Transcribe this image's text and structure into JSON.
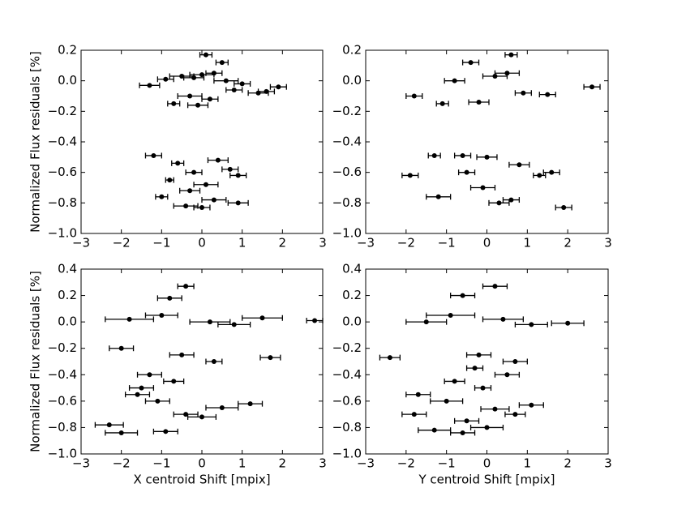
{
  "chart_data": [
    {
      "type": "scatter",
      "ylabel": "Normalized Flux residuals [%]",
      "color": "#000000",
      "xlim": [
        -3,
        3
      ],
      "ylim": [
        -1.0,
        0.2
      ],
      "xticks": [
        {
          "value": -3,
          "label": "−3"
        },
        {
          "value": -2,
          "label": "−2"
        },
        {
          "value": -1,
          "label": "−1"
        },
        0,
        1,
        2,
        3
      ],
      "yticks": [
        {
          "value": -1.0,
          "label": "−1.0"
        },
        {
          "value": -0.8,
          "label": "−0.8"
        },
        {
          "value": -0.6,
          "label": "−0.6"
        },
        {
          "value": -0.4,
          "label": "−0.4"
        },
        {
          "value": -0.2,
          "label": "−0.2"
        },
        {
          "value": 0.0,
          "label": "0.0"
        },
        {
          "value": 0.2,
          "label": "0.2"
        }
      ],
      "x": [
        0.1,
        -1.3,
        -0.9,
        -0.5,
        -0.2,
        0.3,
        0.6,
        1.0,
        1.4,
        1.9,
        -0.7,
        0.2,
        -0.1,
        0.8,
        1.6,
        0.5,
        -0.3,
        0.0,
        -1.2,
        -0.6,
        -0.2,
        0.4,
        0.9,
        -0.8,
        0.1,
        -0.3,
        0.7,
        -1.0,
        0.3,
        0.9,
        -0.4,
        0.0
      ],
      "y": [
        0.17,
        -0.03,
        0.01,
        0.03,
        0.02,
        0.05,
        0.0,
        -0.02,
        -0.08,
        -0.04,
        -0.15,
        -0.12,
        -0.16,
        -0.06,
        -0.07,
        0.12,
        -0.1,
        0.04,
        -0.49,
        -0.54,
        -0.6,
        -0.52,
        -0.62,
        -0.65,
        -0.68,
        -0.72,
        -0.58,
        -0.76,
        -0.78,
        -0.8,
        -0.82,
        -0.83
      ],
      "xerr": [
        0.15,
        0.25,
        0.2,
        0.3,
        0.25,
        0.2,
        0.3,
        0.2,
        0.25,
        0.2,
        0.15,
        0.2,
        0.25,
        0.2,
        0.2,
        0.15,
        0.3,
        0.3,
        0.2,
        0.15,
        0.2,
        0.25,
        0.2,
        0.1,
        0.3,
        0.25,
        0.2,
        0.15,
        0.3,
        0.25,
        0.3,
        0.2
      ]
    },
    {
      "type": "scatter",
      "color": "#000000",
      "xlim": [
        -3,
        3
      ],
      "ylim": [
        -1.0,
        0.2
      ],
      "xticks": [
        {
          "value": -3,
          "label": "−3"
        },
        {
          "value": -2,
          "label": "−2"
        },
        {
          "value": -1,
          "label": "−1"
        },
        0,
        1,
        2,
        3
      ],
      "yticks": [
        {
          "value": -1.0,
          "label": "−1.0"
        },
        {
          "value": -0.8,
          "label": "−0.8"
        },
        {
          "value": -0.6,
          "label": "−0.6"
        },
        {
          "value": -0.4,
          "label": "−0.4"
        },
        {
          "value": -0.2,
          "label": "−0.2"
        },
        {
          "value": 0.0,
          "label": "0.0"
        },
        {
          "value": 0.2,
          "label": "0.2"
        }
      ],
      "x": [
        0.6,
        -0.4,
        -1.8,
        2.6,
        -1.1,
        0.2,
        -0.8,
        0.9,
        1.5,
        -0.2,
        0.5,
        -0.6,
        0.0,
        -1.3,
        -1.9,
        -0.5,
        0.8,
        1.6,
        1.3,
        -1.2,
        0.3,
        1.9,
        -0.1,
        0.6
      ],
      "y": [
        0.17,
        0.12,
        -0.1,
        -0.04,
        -0.15,
        0.03,
        0.0,
        -0.08,
        -0.09,
        -0.14,
        0.05,
        -0.49,
        -0.5,
        -0.49,
        -0.62,
        -0.6,
        -0.55,
        -0.6,
        -0.62,
        -0.76,
        -0.8,
        -0.83,
        -0.7,
        -0.78
      ],
      "xerr": [
        0.15,
        0.2,
        0.2,
        0.2,
        0.15,
        0.3,
        0.25,
        0.2,
        0.2,
        0.25,
        0.3,
        0.2,
        0.25,
        0.15,
        0.2,
        0.2,
        0.25,
        0.2,
        0.15,
        0.3,
        0.25,
        0.2,
        0.3,
        0.2
      ]
    },
    {
      "type": "scatter",
      "ylabel": "Normalized Flux residuals [%]",
      "xlabel": "X centroid Shift [mpix]",
      "color": "#000000",
      "xlim": [
        -3,
        3
      ],
      "ylim": [
        -1.0,
        0.4
      ],
      "xticks": [
        {
          "value": -3,
          "label": "−3"
        },
        {
          "value": -2,
          "label": "−2"
        },
        {
          "value": -1,
          "label": "−1"
        },
        0,
        1,
        2,
        3
      ],
      "yticks": [
        {
          "value": -1.0,
          "label": "−1.0"
        },
        {
          "value": -0.8,
          "label": "−0.8"
        },
        {
          "value": -0.6,
          "label": "−0.6"
        },
        {
          "value": -0.4,
          "label": "−0.4"
        },
        {
          "value": -0.2,
          "label": "−0.2"
        },
        {
          "value": 0.0,
          "label": "0.0"
        },
        {
          "value": 0.2,
          "label": "0.2"
        },
        {
          "value": 0.4,
          "label": "0.4"
        }
      ],
      "x": [
        -0.4,
        -0.8,
        2.8,
        1.7,
        -2.0,
        -1.8,
        -1.0,
        0.2,
        0.8,
        1.5,
        -0.5,
        0.3,
        -1.3,
        -0.7,
        -1.5,
        -2.3,
        -1.1,
        -0.4,
        0.5,
        1.2,
        -0.9,
        -2.0,
        0.0,
        -1.6
      ],
      "y": [
        0.27,
        0.18,
        0.01,
        -0.27,
        -0.2,
        0.02,
        0.05,
        0.0,
        -0.02,
        0.03,
        -0.25,
        -0.3,
        -0.4,
        -0.45,
        -0.5,
        -0.78,
        -0.6,
        -0.7,
        -0.65,
        -0.62,
        -0.83,
        -0.84,
        -0.72,
        -0.55
      ],
      "xerr": [
        0.2,
        0.3,
        0.2,
        0.25,
        0.3,
        0.6,
        0.4,
        0.5,
        0.4,
        0.5,
        0.3,
        0.2,
        0.3,
        0.25,
        0.3,
        0.35,
        0.3,
        0.3,
        0.4,
        0.3,
        0.3,
        0.4,
        0.35,
        0.3
      ]
    },
    {
      "type": "scatter",
      "xlabel": "Y centroid Shift [mpix]",
      "color": "#000000",
      "xlim": [
        -3,
        3
      ],
      "ylim": [
        -1.0,
        0.4
      ],
      "xticks": [
        {
          "value": -3,
          "label": "−3"
        },
        {
          "value": -2,
          "label": "−2"
        },
        {
          "value": -1,
          "label": "−1"
        },
        0,
        1,
        2,
        3
      ],
      "yticks": [
        {
          "value": -1.0,
          "label": "−1.0"
        },
        {
          "value": -0.8,
          "label": "−0.8"
        },
        {
          "value": -0.6,
          "label": "−0.6"
        },
        {
          "value": -0.4,
          "label": "−0.4"
        },
        {
          "value": -0.2,
          "label": "−0.2"
        },
        {
          "value": 0.0,
          "label": "0.0"
        },
        {
          "value": 0.2,
          "label": "0.2"
        },
        {
          "value": 0.4,
          "label": "0.4"
        }
      ],
      "x": [
        0.2,
        -0.6,
        -2.4,
        -1.5,
        -0.9,
        0.4,
        1.1,
        2.0,
        -0.2,
        0.7,
        -0.3,
        -0.8,
        -0.1,
        0.5,
        -1.0,
        -1.8,
        -0.5,
        1.1,
        0.7,
        -1.3,
        -0.6,
        0.2,
        -1.7,
        0.0
      ],
      "y": [
        0.27,
        0.2,
        -0.27,
        0.0,
        0.05,
        0.02,
        -0.02,
        -0.01,
        -0.25,
        -0.3,
        -0.35,
        -0.45,
        -0.5,
        -0.4,
        -0.6,
        -0.7,
        -0.75,
        -0.63,
        -0.7,
        -0.82,
        -0.84,
        -0.66,
        -0.55,
        -0.8
      ],
      "xerr": [
        0.3,
        0.3,
        0.25,
        0.5,
        0.6,
        0.5,
        0.4,
        0.4,
        0.3,
        0.3,
        0.2,
        0.25,
        0.2,
        0.3,
        0.4,
        0.3,
        0.3,
        0.3,
        0.25,
        0.4,
        0.3,
        0.35,
        0.3,
        0.4
      ]
    }
  ]
}
